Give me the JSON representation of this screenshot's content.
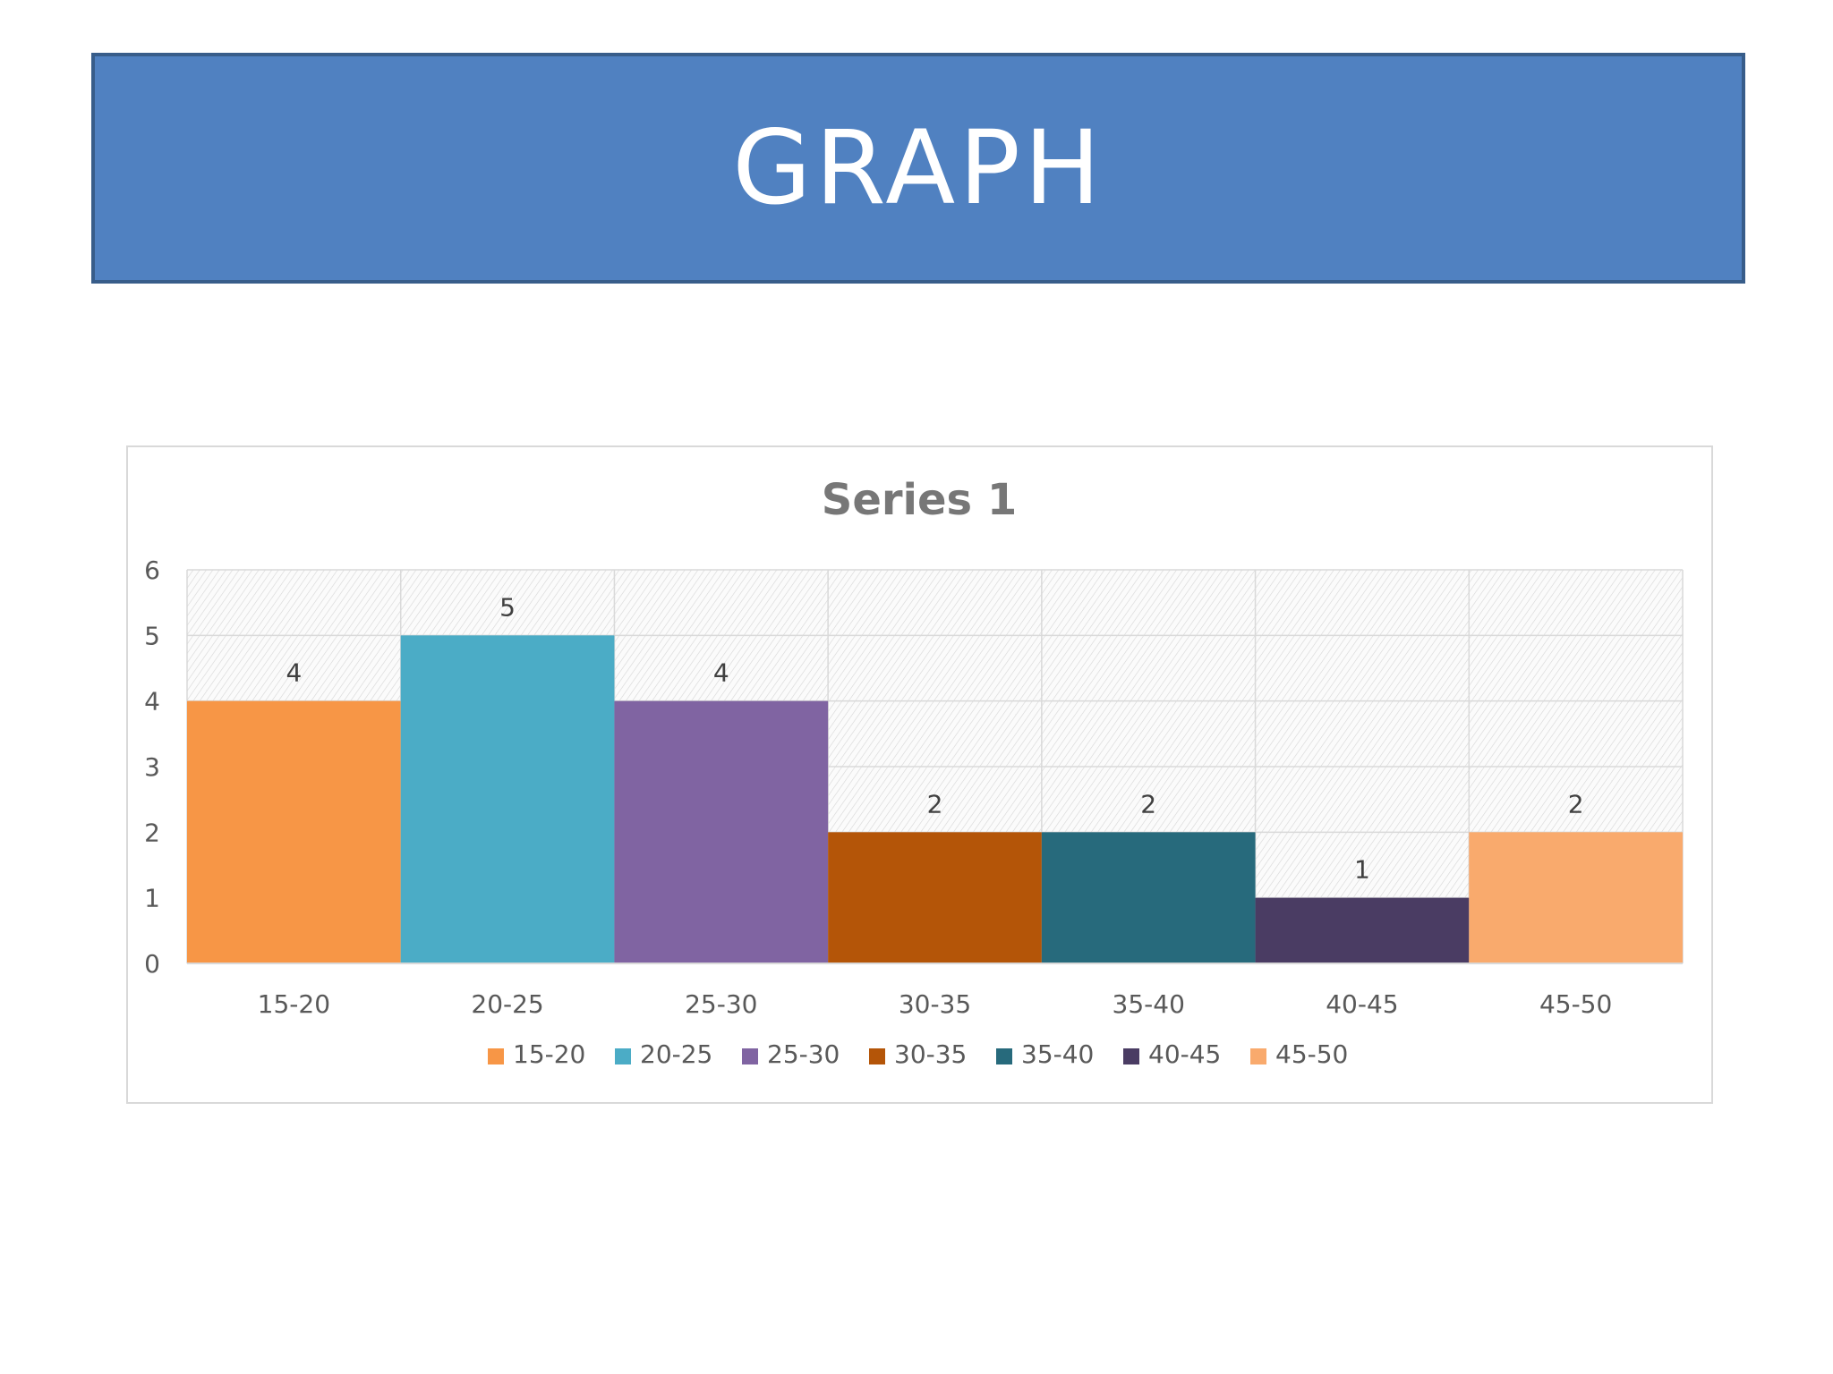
{
  "slide": {
    "title": "GRAPH",
    "banner_color": "#5081c1",
    "banner_border_color": "#385d8a"
  },
  "chart_data": {
    "type": "bar",
    "title": "Series 1",
    "xlabel": "",
    "ylabel": "",
    "categories": [
      "15-20",
      "20-25",
      "25-30",
      "30-35",
      "35-40",
      "40-45",
      "45-50"
    ],
    "values": [
      4,
      5,
      4,
      2,
      2,
      1,
      2
    ],
    "colors": [
      "#f79646",
      "#4bacc6",
      "#8064a2",
      "#b45508",
      "#276a7c",
      "#4a3c63",
      "#f9aa6d"
    ],
    "ylim": [
      0,
      6
    ],
    "yticks": [
      0,
      1,
      2,
      3,
      4,
      5,
      6
    ],
    "grid": true,
    "plot_background": "hatched",
    "data_labels": true,
    "legend": {
      "position": "bottom",
      "entries": [
        "15-20",
        "20-25",
        "25-30",
        "30-35",
        "35-40",
        "40-45",
        "45-50"
      ]
    }
  }
}
